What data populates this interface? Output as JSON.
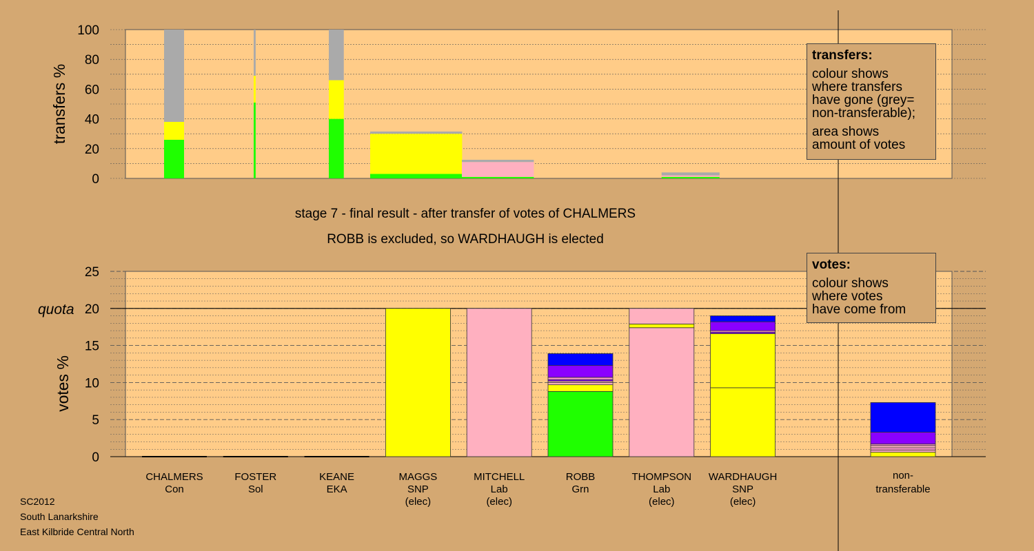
{
  "footer": {
    "line1": "SC2012",
    "line2": "South Lanarkshire",
    "line3": "East Kilbride Central North"
  },
  "stage": {
    "title": "stage 7 - final result - after transfer of votes of CHALMERS",
    "subtitle": "ROBB is excluded, so WARDHAUGH is elected"
  },
  "legends": {
    "transfers": {
      "title": "transfers:",
      "lines1": [
        "colour shows",
        "where transfers",
        "have gone (grey=",
        "non-transferable);"
      ],
      "lines2": [
        "area shows",
        "amount of votes"
      ]
    },
    "votes": {
      "title": "votes:",
      "lines": [
        "colour shows",
        "where votes",
        "have come from"
      ]
    }
  },
  "colors": {
    "background": "#d4a872",
    "plot_background": "#ffcc88",
    "Con": "#1fff00",
    "Sol": "#ffff00",
    "EKA": "#a6a6a6",
    "SNP": "#ffff00",
    "Lab": "#ffb0c0",
    "Grn": "#1fff00",
    "Pink": "#ff99cc",
    "Purple": "#8a00ff",
    "Blue": "#0000ff",
    "Grey": "#aaaaaa"
  },
  "chart_data": [
    {
      "type": "bar",
      "ylabel": "transfers %",
      "ylim": [
        0,
        100
      ],
      "yticks": [
        0,
        20,
        40,
        60,
        80,
        100
      ],
      "bars": [
        {
          "candidate": "CHALMERS",
          "width_share": 1.0,
          "segments": [
            {
              "party": "Grn",
              "color": "#1fff00",
              "value": 26
            },
            {
              "party": "SNP",
              "color": "#ffff00",
              "value": 12
            },
            {
              "party": "non-transferable",
              "color": "#aaaaaa",
              "value": 62
            }
          ]
        },
        {
          "candidate": "FOSTER",
          "width_share": 0.1,
          "segments": [
            {
              "party": "Grn",
              "color": "#1fff00",
              "value": 51
            },
            {
              "party": "SNP",
              "color": "#ffff00",
              "value": 18
            },
            {
              "party": "non-transferable",
              "color": "#aaaaaa",
              "value": 31
            }
          ]
        },
        {
          "candidate": "KEANE",
          "width_share": 0.75,
          "segments": [
            {
              "party": "Grn",
              "color": "#1fff00",
              "value": 40
            },
            {
              "party": "SNP",
              "color": "#ffff00",
              "value": 26
            },
            {
              "party": "non-transferable",
              "color": "#aaaaaa",
              "value": 34
            }
          ]
        },
        {
          "candidate": "MAGGS",
          "width_share": 4.6,
          "segments": [
            {
              "party": "Grn",
              "color": "#1fff00",
              "value": 3
            },
            {
              "party": "SNP",
              "color": "#ffff00",
              "value": 2
            },
            {
              "party": "SNP",
              "color": "#ffff00",
              "value": 25
            },
            {
              "party": "non-transferable",
              "color": "#aaaaaa",
              "value": 1.5
            }
          ]
        },
        {
          "candidate": "MITCHELL",
          "width_share": 3.6,
          "segments": [
            {
              "party": "Grn",
              "color": "#1fff00",
              "value": 1
            },
            {
              "party": "Lab",
              "color": "#ffb0c0",
              "value": 10
            },
            {
              "party": "non-transferable",
              "color": "#aaaaaa",
              "value": 1.5
            }
          ]
        },
        {
          "candidate": "THOMPSON",
          "width_share": 2.9,
          "segments": [
            {
              "party": "Grn",
              "color": "#1fff00",
              "value": 1
            },
            {
              "party": "Lab",
              "color": "#ffb0c0",
              "value": 1
            },
            {
              "party": "non-transferable",
              "color": "#aaaaaa",
              "value": 2
            }
          ]
        }
      ]
    },
    {
      "type": "bar",
      "ylabel": "votes %",
      "quota_label": "quota",
      "quota": 20,
      "ylim": [
        0,
        25
      ],
      "yticks": [
        0,
        5,
        10,
        15,
        20,
        25
      ],
      "categories": [
        {
          "name": "CHALMERS",
          "party": "Con",
          "status": ""
        },
        {
          "name": "FOSTER",
          "party": "Sol",
          "status": ""
        },
        {
          "name": "KEANE",
          "party": "EKA",
          "status": ""
        },
        {
          "name": "MAGGS",
          "party": "SNP",
          "status": "(elec)"
        },
        {
          "name": "MITCHELL",
          "party": "Lab",
          "status": "(elec)"
        },
        {
          "name": "ROBB",
          "party": "Grn",
          "status": ""
        },
        {
          "name": "THOMPSON",
          "party": "Lab",
          "status": "(elec)"
        },
        {
          "name": "WARDHAUGH",
          "party": "SNP",
          "status": "(elec)"
        }
      ],
      "nontransferable_label": [
        "non-",
        "transferable"
      ],
      "bars": [
        {
          "candidate": "CHALMERS",
          "segments": []
        },
        {
          "candidate": "FOSTER",
          "segments": []
        },
        {
          "candidate": "KEANE",
          "segments": []
        },
        {
          "candidate": "MAGGS",
          "segments": [
            {
              "color": "#ffff00",
              "value": 20
            }
          ]
        },
        {
          "candidate": "MITCHELL",
          "segments": [
            {
              "color": "#ffb0c0",
              "value": 20
            }
          ]
        },
        {
          "candidate": "ROBB",
          "segments": [
            {
              "color": "#1fff00",
              "value": 8.8
            },
            {
              "color": "#ffff00",
              "value": 0.9
            },
            {
              "color": "#ffb0c0",
              "value": 0.3
            },
            {
              "color": "#ffb0c0",
              "value": 0.2
            },
            {
              "color": "#8a00ff",
              "value": 0.2
            },
            {
              "color": "#ff99cc",
              "value": 0.3
            },
            {
              "color": "#8a00ff",
              "value": 1.6
            },
            {
              "color": "#0000ff",
              "value": 1.6
            }
          ]
        },
        {
          "candidate": "THOMPSON",
          "segments": [
            {
              "color": "#ffb0c0",
              "value": 17.4
            },
            {
              "color": "#ffff00",
              "value": 0.5
            },
            {
              "color": "#ffb0c0",
              "value": 2.1
            }
          ]
        },
        {
          "candidate": "WARDHAUGH",
          "segments": [
            {
              "color": "#ffff00",
              "value": 9.3
            },
            {
              "color": "#ffff00",
              "value": 7.3
            },
            {
              "color": "#8a00ff",
              "value": 0.2
            },
            {
              "color": "#ff99cc",
              "value": 0.2
            },
            {
              "color": "#8a00ff",
              "value": 1.2
            },
            {
              "color": "#0000ff",
              "value": 0.8
            }
          ]
        },
        {
          "candidate": "non-transferable",
          "segments": [
            {
              "color": "#ffff00",
              "value": 0.6
            },
            {
              "color": "#ffb0c0",
              "value": 0.3
            },
            {
              "color": "#ff99cc",
              "value": 0.3
            },
            {
              "color": "#ffb0c0",
              "value": 0.3
            },
            {
              "color": "#ff99cc",
              "value": 0.2
            },
            {
              "color": "#8a00ff",
              "value": 1.6
            },
            {
              "color": "#0000ff",
              "value": 4.0
            }
          ]
        }
      ]
    }
  ]
}
